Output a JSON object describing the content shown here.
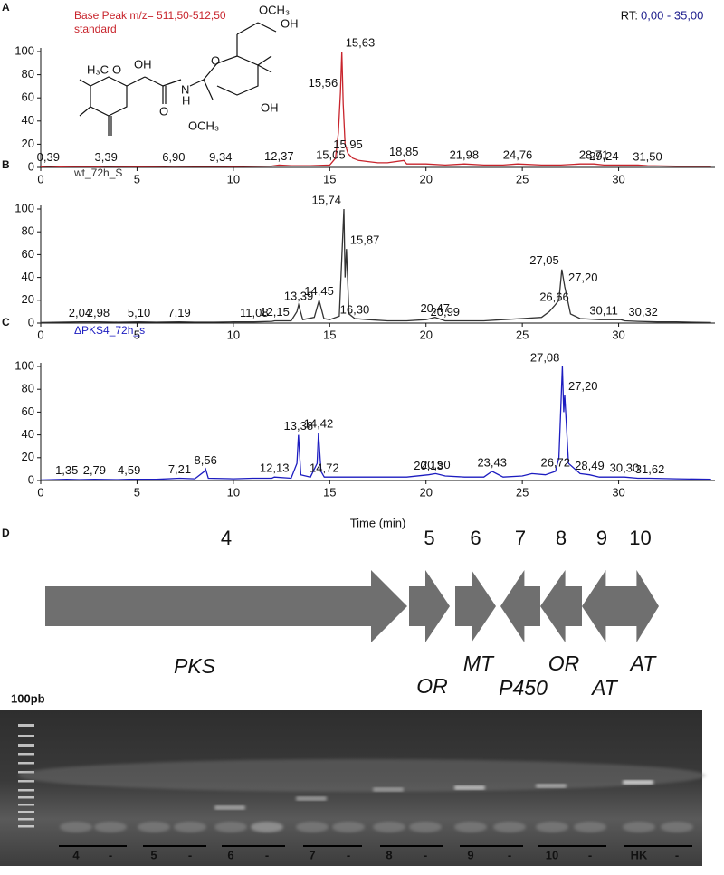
{
  "chart_data": [
    {
      "type": "line",
      "panel": "A",
      "rt_label": "RT:",
      "rt_range": "0,00 - 35,00",
      "subtitle": "standard",
      "x": [
        0,
        0.39,
        1,
        2,
        3,
        3.39,
        4,
        5,
        6,
        6.9,
        8,
        9.34,
        10,
        11,
        12,
        12.37,
        13,
        14,
        15,
        15.05,
        15.3,
        15.45,
        15.56,
        15.63,
        15.7,
        15.8,
        15.95,
        16.2,
        16.5,
        17,
        17.5,
        18,
        18.85,
        19,
        20,
        21,
        21.98,
        23,
        24,
        24.76,
        26,
        27,
        28,
        28.71,
        29.24,
        30,
        31,
        31.5,
        33,
        34.8
      ],
      "series": [
        {
          "name": "Base Peak m/z= 511,50-512,50",
          "color": "#c8242c",
          "values": [
            0.5,
            1,
            0.5,
            0.8,
            0.6,
            1,
            0.8,
            0.7,
            0.8,
            1,
            0.9,
            1,
            0.8,
            1,
            1.2,
            2,
            1.5,
            1.5,
            2,
            3,
            8,
            30,
            65,
            100,
            55,
            20,
            12,
            8,
            6,
            5,
            4,
            4,
            6,
            3,
            3,
            2,
            3,
            2,
            2,
            3,
            2,
            2,
            3,
            3,
            2,
            2,
            2,
            1.5,
            1,
            1
          ]
        }
      ],
      "xlim": [
        0,
        35
      ],
      "xticks": [
        0,
        5,
        10,
        15,
        20,
        25,
        30
      ],
      "ylim": [
        0,
        100
      ],
      "yticks": [
        0,
        20,
        40,
        60,
        80,
        100
      ],
      "annotations": [
        {
          "x": 0.39,
          "label": "0,39"
        },
        {
          "x": 3.39,
          "label": "3,39"
        },
        {
          "x": 6.9,
          "label": "6,90"
        },
        {
          "x": 9.34,
          "label": "9,34"
        },
        {
          "x": 12.37,
          "label": "12,37"
        },
        {
          "x": 15.05,
          "label": "15,05"
        },
        {
          "x": 15.56,
          "label": "15,56"
        },
        {
          "x": 15.63,
          "label": "15,63"
        },
        {
          "x": 15.95,
          "label": "15,95"
        },
        {
          "x": 18.85,
          "label": "18,85"
        },
        {
          "x": 21.98,
          "label": "21,98"
        },
        {
          "x": 24.76,
          "label": "24,76"
        },
        {
          "x": 28.71,
          "label": "28,71"
        },
        {
          "x": 29.24,
          "label": "29,24"
        },
        {
          "x": 31.5,
          "label": "31,50"
        }
      ]
    },
    {
      "type": "line",
      "panel": "B",
      "x": [
        0,
        1,
        2.04,
        2.98,
        4,
        5.1,
        6,
        7.19,
        8,
        9,
        10,
        11.08,
        12,
        12.15,
        13,
        13.3,
        13.39,
        13.6,
        14.2,
        14.45,
        14.7,
        15,
        15.5,
        15.74,
        15.8,
        15.87,
        16,
        16.3,
        17,
        18,
        19,
        20,
        20.47,
        20.99,
        22,
        23,
        24,
        25,
        26,
        26.4,
        26.66,
        26.9,
        27.05,
        27.2,
        27.5,
        28,
        29,
        30.11,
        30.32,
        31,
        32,
        33,
        34.8
      ],
      "series": [
        {
          "name": "wt_72h_S",
          "color": "#333333",
          "values": [
            0.5,
            0.8,
            1,
            1,
            0.8,
            1,
            0.8,
            1,
            0.8,
            0.8,
            1,
            1,
            1.5,
            2,
            2,
            10,
            16,
            3,
            5,
            20,
            4,
            3,
            6,
            100,
            40,
            65,
            8,
            4,
            3,
            2,
            2,
            3,
            5,
            2,
            2,
            2,
            3,
            4,
            5,
            10,
            15,
            20,
            47,
            32,
            8,
            4,
            3,
            3,
            2,
            1.5,
            1,
            1,
            0.5
          ]
        }
      ],
      "xlim": [
        0,
        35
      ],
      "xticks": [
        0,
        5,
        10,
        15,
        20,
        25,
        30
      ],
      "ylim": [
        0,
        100
      ],
      "yticks": [
        0,
        20,
        40,
        60,
        80,
        100
      ],
      "annotations": [
        {
          "x": 2.04,
          "label": "2,04"
        },
        {
          "x": 2.98,
          "label": "2,98"
        },
        {
          "x": 5.1,
          "label": "5,10"
        },
        {
          "x": 7.19,
          "label": "7,19"
        },
        {
          "x": 11.08,
          "label": "11,08"
        },
        {
          "x": 12.15,
          "label": "12,15"
        },
        {
          "x": 13.39,
          "label": "13,39"
        },
        {
          "x": 14.45,
          "label": "14,45"
        },
        {
          "x": 15.74,
          "label": "15,74"
        },
        {
          "x": 15.87,
          "label": "15,87"
        },
        {
          "x": 16.3,
          "label": "16,30"
        },
        {
          "x": 20.47,
          "label": "20,47"
        },
        {
          "x": 20.99,
          "label": "20,99"
        },
        {
          "x": 26.66,
          "label": "26,66"
        },
        {
          "x": 27.05,
          "label": "27,05"
        },
        {
          "x": 27.2,
          "label": "27,20"
        },
        {
          "x": 30.11,
          "label": "30,11"
        },
        {
          "x": 30.32,
          "label": "30,32"
        }
      ]
    },
    {
      "type": "line",
      "panel": "C",
      "xlabel": "Time (min)",
      "x": [
        0,
        1.35,
        2,
        2.79,
        4,
        4.59,
        6,
        7.21,
        8,
        8.5,
        8.56,
        8.7,
        10,
        11,
        12,
        12.13,
        13,
        13.3,
        13.38,
        13.5,
        14,
        14.35,
        14.42,
        14.55,
        14.72,
        16,
        17,
        18,
        19,
        20.13,
        20.5,
        21,
        22,
        23,
        23.43,
        24,
        25,
        25.5,
        26.2,
        26.72,
        26.9,
        27.08,
        27.15,
        27.2,
        27.4,
        28,
        28.49,
        29,
        30.3,
        31,
        31.62,
        33,
        34.8
      ],
      "series": [
        {
          "name": "ΔPKS4_72h_s",
          "color": "#1c1cc0",
          "values": [
            0.5,
            1,
            0.8,
            1,
            0.8,
            1,
            1,
            2,
            1.5,
            8,
            10,
            2,
            1.5,
            2,
            2,
            3,
            2,
            15,
            40,
            5,
            3,
            15,
            42,
            8,
            3,
            3,
            3,
            3,
            3,
            5,
            6,
            4,
            3,
            3,
            8,
            3,
            4,
            6,
            5,
            8,
            20,
            100,
            60,
            75,
            15,
            6,
            5,
            3,
            3,
            2,
            2,
            1.5,
            1
          ]
        }
      ],
      "xlim": [
        0,
        35
      ],
      "xticks": [
        0,
        5,
        10,
        15,
        20,
        25,
        30
      ],
      "ylim": [
        0,
        100
      ],
      "yticks": [
        0,
        20,
        40,
        60,
        80,
        100
      ],
      "annotations": [
        {
          "x": 1.35,
          "label": "1,35"
        },
        {
          "x": 2.79,
          "label": "2,79"
        },
        {
          "x": 4.59,
          "label": "4,59"
        },
        {
          "x": 7.21,
          "label": "7,21"
        },
        {
          "x": 8.56,
          "label": "8,56"
        },
        {
          "x": 12.13,
          "label": "12,13"
        },
        {
          "x": 13.38,
          "label": "13,38"
        },
        {
          "x": 14.42,
          "label": "14,42"
        },
        {
          "x": 14.72,
          "label": "14,72"
        },
        {
          "x": 20.13,
          "label": "20,13"
        },
        {
          "x": 20.5,
          "label": "20,50"
        },
        {
          "x": 23.43,
          "label": "23,43"
        },
        {
          "x": 26.72,
          "label": "26,72"
        },
        {
          "x": 27.08,
          "label": "27,08"
        },
        {
          "x": 27.2,
          "label": "27,20"
        },
        {
          "x": 28.49,
          "label": "28,49"
        },
        {
          "x": 30.3,
          "label": "30,30"
        },
        {
          "x": 31.62,
          "label": "31,62"
        }
      ]
    }
  ],
  "structure": {
    "labels": [
      "OCH₃",
      "OH",
      "O",
      "OH",
      "OCH₃",
      "N",
      "H",
      "O",
      "OH",
      "H₃C",
      "O"
    ]
  },
  "gene_panel": {
    "panel": "D",
    "genes": [
      {
        "number": "4",
        "function": "PKS",
        "direction": "right"
      },
      {
        "number": "5",
        "function": "OR",
        "direction": "right"
      },
      {
        "number": "6",
        "function": "MT",
        "direction": "right"
      },
      {
        "number": "7",
        "function": "P450",
        "direction": "left"
      },
      {
        "number": "8",
        "function": "OR",
        "direction": "left"
      },
      {
        "number": "9",
        "function": "AT",
        "direction": "left"
      },
      {
        "number": "10",
        "function": "AT",
        "direction": "right"
      }
    ]
  },
  "gel": {
    "ladder_label": "100pb",
    "lanes": [
      "4",
      "-",
      "5",
      "-",
      "6",
      "-",
      "7",
      "-",
      "8",
      "-",
      "9",
      "-",
      "10",
      "-",
      "HK",
      "-"
    ]
  }
}
